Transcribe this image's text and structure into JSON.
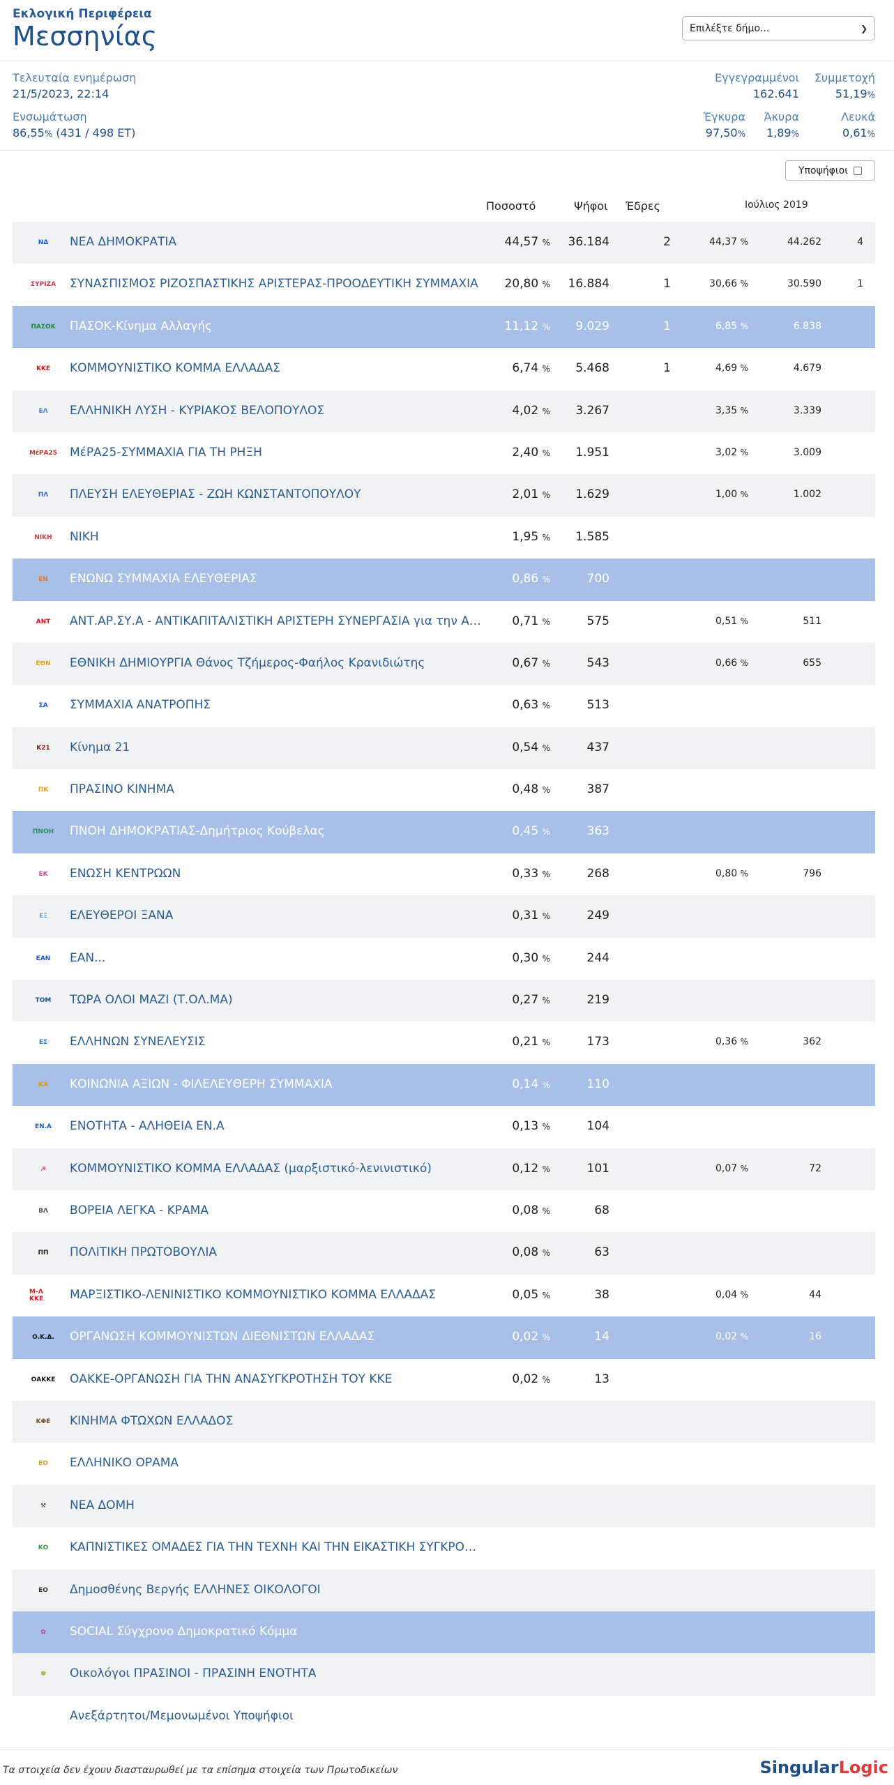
{
  "header": {
    "subtitle": "Εκλογική Περιφέρεια",
    "title": "Μεσσηνίας",
    "municipality_select": "Επιλέξτε δήμο..."
  },
  "stats": {
    "last_update_label": "Τελευταία ενημέρωση",
    "last_update_value": "21/5/2023, 22:14",
    "integration_label": "Ενσωμάτωση",
    "integration_pct": "86,55",
    "integration_detail": "(431 / 498 ΕΤ)",
    "registered_label": "Εγγεγραμμένοι",
    "registered_value": "162.641",
    "turnout_label": "Συμμετοχή",
    "turnout_value": "51,19",
    "valid_label": "Έγκυρα",
    "valid_value": "97,50",
    "invalid_label": "Άκυρα",
    "invalid_value": "1,89",
    "blank_label": "Λευκά",
    "blank_value": "0,61",
    "pct_sign": "%"
  },
  "candidates_toggle": "Υποψήφιοι",
  "table": {
    "col_pct": "Ποσοστό",
    "col_votes": "Ψήφοι",
    "col_seats": "Έδρες",
    "col_previous": "Ιούλιος 2019",
    "rows": [
      {
        "name": "ΝΕΑ ΔΗΜΟΚΡΑΤΙΑ",
        "pct": "44,57",
        "votes": "36.184",
        "seats": "2",
        "opct": "44,37",
        "ovotes": "44.262",
        "oseats": "4",
        "logo": "ΝΔ",
        "logo_color": "#1c58c7",
        "style": "alt"
      },
      {
        "name": "ΣΥΝΑΣΠΙΣΜΟΣ ΡΙΖΟΣΠΑΣΤΙΚΗΣ ΑΡΙΣΤΕΡΑΣ-ΠΡΟΟΔΕΥΤΙΚΗ ΣΥΜΜΑΧΙΑ",
        "pct": "20,80",
        "votes": "16.884",
        "seats": "1",
        "opct": "30,66",
        "ovotes": "30.590",
        "oseats": "1",
        "logo": "ΣΥΡΙΖΑ",
        "logo_color": "#c9384e",
        "style": ""
      },
      {
        "name": "ΠΑΣΟΚ-Κίνημα Αλλαγής",
        "pct": "11,12",
        "votes": "9.029",
        "seats": "1",
        "opct": "6,85",
        "ovotes": "6.838",
        "oseats": "",
        "logo": "ΠΑΣΟΚ",
        "logo_color": "#1a8a3a",
        "style": "hl"
      },
      {
        "name": "ΚΟΜΜΟΥΝΙΣΤΙΚΟ ΚΟΜΜΑ ΕΛΛΑΔΑΣ",
        "pct": "6,74",
        "votes": "5.468",
        "seats": "1",
        "opct": "4,69",
        "ovotes": "4.679",
        "oseats": "",
        "logo": "ΚΚΕ",
        "logo_color": "#d6161c",
        "style": ""
      },
      {
        "name": "ΕΛΛΗΝΙΚΗ ΛΥΣΗ - ΚΥΡΙΑΚΟΣ ΒΕΛΟΠΟΥΛΟΣ",
        "pct": "4,02",
        "votes": "3.267",
        "seats": "",
        "opct": "3,35",
        "ovotes": "3.339",
        "oseats": "",
        "logo": "ΕΛ",
        "logo_color": "#4a7fc1",
        "style": "alt"
      },
      {
        "name": "ΜέΡΑ25-ΣΥΜΜΑΧΙΑ ΓΙΑ ΤΗ ΡΗΞΗ",
        "pct": "2,40",
        "votes": "1.951",
        "seats": "",
        "opct": "3,02",
        "ovotes": "3.009",
        "oseats": "",
        "logo": "ΜέΡΑ25",
        "logo_color": "#c0392b",
        "style": ""
      },
      {
        "name": "ΠΛΕΥΣΗ ΕΛΕΥΘΕΡΙΑΣ - ΖΩΗ ΚΩΝΣΤΑΝΤΟΠΟΥΛΟΥ",
        "pct": "2,01",
        "votes": "1.629",
        "seats": "",
        "opct": "1,00",
        "ovotes": "1.002",
        "oseats": "",
        "logo": "ΠΛ",
        "logo_color": "#2a6fb0",
        "style": "alt"
      },
      {
        "name": "ΝΙΚΗ",
        "pct": "1,95",
        "votes": "1.585",
        "seats": "",
        "opct": "",
        "ovotes": "",
        "oseats": "",
        "logo": "ΝΙΚΗ",
        "logo_color": "#d04040",
        "style": ""
      },
      {
        "name": "ΕΝΩΝΩ ΣΥΜΜΑΧΙΑ ΕΛΕΥΘΕΡΙΑΣ",
        "pct": "0,86",
        "votes": "700",
        "seats": "",
        "opct": "",
        "ovotes": "",
        "oseats": "",
        "logo": "ΕΝ",
        "logo_color": "#e07a30",
        "style": "hl"
      },
      {
        "name": "ΑΝΤ.ΑΡ.ΣΥ.Α - ΑΝΤΙΚΑΠΙΤΑΛΙΣΤΙΚΗ ΑΡΙΣΤΕΡΗ ΣΥΝΕΡΓΑΣΙΑ για την ΑΝΑ...",
        "pct": "0,71",
        "votes": "575",
        "seats": "",
        "opct": "0,51",
        "ovotes": "511",
        "oseats": "",
        "logo": "ΑΝΤ",
        "logo_color": "#d6161c",
        "style": ""
      },
      {
        "name": "ΕΘΝΙΚΗ ΔΗΜΙΟΥΡΓΙΑ Θάνος Τζήμερος-Φαήλος Κρανιδιώτης",
        "pct": "0,67",
        "votes": "543",
        "seats": "",
        "opct": "0,66",
        "ovotes": "655",
        "oseats": "",
        "logo": "ΕΘΝ",
        "logo_color": "#e8a020",
        "style": "alt"
      },
      {
        "name": "ΣΥΜΜΑΧΙΑ ΑΝΑΤΡΟΠΗΣ",
        "pct": "0,63",
        "votes": "513",
        "seats": "",
        "opct": "",
        "ovotes": "",
        "oseats": "",
        "logo": "ΣΑ",
        "logo_color": "#1c58c7",
        "style": ""
      },
      {
        "name": "Κίνημα 21",
        "pct": "0,54",
        "votes": "437",
        "seats": "",
        "opct": "",
        "ovotes": "",
        "oseats": "",
        "logo": "Κ21",
        "logo_color": "#8a1c1c",
        "style": "alt"
      },
      {
        "name": "ΠΡΑΣΙΝΟ ΚΙΝΗΜΑ",
        "pct": "0,48",
        "votes": "387",
        "seats": "",
        "opct": "",
        "ovotes": "",
        "oseats": "",
        "logo": "ΠΚ",
        "logo_color": "#e8a020",
        "style": ""
      },
      {
        "name": "ΠΝΟΗ ΔΗΜΟΚΡΑΤΙΑΣ-Δημήτριος Κούβελας",
        "pct": "0,45",
        "votes": "363",
        "seats": "",
        "opct": "",
        "ovotes": "",
        "oseats": "",
        "logo": "ΠΝΟΗ",
        "logo_color": "#2a8a6a",
        "style": "hl"
      },
      {
        "name": "ΕΝΩΣΗ ΚΕΝΤΡΩΩΝ",
        "pct": "0,33",
        "votes": "268",
        "seats": "",
        "opct": "0,80",
        "ovotes": "796",
        "oseats": "",
        "logo": "ΕΚ",
        "logo_color": "#e04a90",
        "style": ""
      },
      {
        "name": "ΕΛΕΥΘΕΡΟΙ ΞΑΝΑ",
        "pct": "0,31",
        "votes": "249",
        "seats": "",
        "opct": "",
        "ovotes": "",
        "oseats": "",
        "logo": "ΕΞ",
        "logo_color": "#6aa0d0",
        "style": "alt"
      },
      {
        "name": "ΕΑΝ...",
        "pct": "0,30",
        "votes": "244",
        "seats": "",
        "opct": "",
        "ovotes": "",
        "oseats": "",
        "logo": "ΕΑΝ",
        "logo_color": "#1c58c7",
        "style": ""
      },
      {
        "name": "ΤΩΡΑ ΟΛΟΙ ΜΑΖΙ (Τ.ΟΛ.ΜΑ)",
        "pct": "0,27",
        "votes": "219",
        "seats": "",
        "opct": "",
        "ovotes": "",
        "oseats": "",
        "logo": "ΤΟΜ",
        "logo_color": "#1c4fa0",
        "style": "alt"
      },
      {
        "name": "ΕΛΛΗΝΩΝ ΣΥΝΕΛΕΥΣΙΣ",
        "pct": "0,21",
        "votes": "173",
        "seats": "",
        "opct": "0,36",
        "ovotes": "362",
        "oseats": "",
        "logo": "ΕΣ",
        "logo_color": "#2a78c8",
        "style": ""
      },
      {
        "name": "ΚΟΙΝΩΝΙΑ ΑΞΙΩΝ - ΦΙΛΕΛΕΥΘΕΡΗ ΣΥΜΜΑΧΙΑ",
        "pct": "0,14",
        "votes": "110",
        "seats": "",
        "opct": "",
        "ovotes": "",
        "oseats": "",
        "logo": "ΚΑ",
        "logo_color": "#d0a020",
        "style": "hl"
      },
      {
        "name": "ΕΝΟΤΗΤΑ - ΑΛΗΘΕΙΑ ΕΝ.Α",
        "pct": "0,13",
        "votes": "104",
        "seats": "",
        "opct": "",
        "ovotes": "",
        "oseats": "",
        "logo": "ΕΝ.Α",
        "logo_color": "#1c58c7",
        "style": ""
      },
      {
        "name": "ΚΟΜΜΟΥΝΙΣΤΙΚΟ ΚΟΜΜΑ ΕΛΛΑΔΑΣ (μαρξιστικό-λενινιστικό)",
        "pct": "0,12",
        "votes": "101",
        "seats": "",
        "opct": "0,07",
        "ovotes": "72",
        "oseats": "",
        "logo": "☭",
        "logo_color": "#d6161c",
        "style": "alt"
      },
      {
        "name": "ΒΟΡΕΙΑ ΛΕΓΚΑ - ΚΡΑΜΑ",
        "pct": "0,08",
        "votes": "68",
        "seats": "",
        "opct": "",
        "ovotes": "",
        "oseats": "",
        "logo": "ΒΛ",
        "logo_color": "#555555",
        "style": ""
      },
      {
        "name": "ΠΟΛΙΤΙΚΗ ΠΡΩΤΟΒΟΥΛΙΑ",
        "pct": "0,08",
        "votes": "63",
        "seats": "",
        "opct": "",
        "ovotes": "",
        "oseats": "",
        "logo": "ΠΠ",
        "logo_color": "#222222",
        "style": "alt"
      },
      {
        "name": "ΜΑΡΞΙΣΤΙΚΟ-ΛΕΝΙΝΙΣΤΙΚΟ ΚΟΜΜΟΥΝΙΣΤΙΚΟ ΚΟΜΜΑ ΕΛΛΑΔΑΣ",
        "pct": "0,05",
        "votes": "38",
        "seats": "",
        "opct": "0,04",
        "ovotes": "44",
        "oseats": "",
        "logo": "Μ-Λ ΚΚΕ",
        "logo_color": "#d6161c",
        "style": ""
      },
      {
        "name": "ΟΡΓΑΝΩΣΗ ΚΟΜΜΟΥΝΙΣΤΩΝ ΔΙΕΘΝΙΣΤΩΝ ΕΛΛΑΔΑΣ",
        "pct": "0,02",
        "votes": "14",
        "seats": "",
        "opct": "0,02",
        "ovotes": "16",
        "oseats": "",
        "logo": "Ο.Κ.Δ.",
        "logo_color": "#111111",
        "style": "hl"
      },
      {
        "name": "ΟΑΚΚΕ-ΟΡΓΑΝΩΣΗ ΓΙΑ ΤΗΝ ΑΝΑΣΥΓΚΡΟΤΗΣΗ ΤΟΥ ΚΚΕ",
        "pct": "0,02",
        "votes": "13",
        "seats": "",
        "opct": "",
        "ovotes": "",
        "oseats": "",
        "logo": "ΟΑΚΚΕ",
        "logo_color": "#111111",
        "style": ""
      },
      {
        "name": "ΚΙΝΗΜΑ ΦΤΩΧΩΝ ΕΛΛΑΔΟΣ",
        "pct": "",
        "votes": "",
        "seats": "",
        "opct": "",
        "ovotes": "",
        "oseats": "",
        "logo": "ΚΦΕ",
        "logo_color": "#7a4a20",
        "style": "alt"
      },
      {
        "name": "ΕΛΛΗΝΙΚΟ ΟΡΑΜΑ",
        "pct": "",
        "votes": "",
        "seats": "",
        "opct": "",
        "ovotes": "",
        "oseats": "",
        "logo": "ΕΟ",
        "logo_color": "#d0a020",
        "style": ""
      },
      {
        "name": "ΝΕΑ ΔΟΜΗ",
        "pct": "",
        "votes": "",
        "seats": "",
        "opct": "",
        "ovotes": "",
        "oseats": "",
        "logo": "⚒",
        "logo_color": "#444444",
        "style": "alt"
      },
      {
        "name": "ΚΑΠΝΙΣΤΙΚΕΣ ΟΜΑΔΕΣ ΓΙΑ ΤΗΝ ΤΕΧΝΗ ΚΑΙ ΤΗΝ ΕΙΚΑΣΤΙΚΗ ΣΥΓΚΡΟΤΗΣΗ",
        "pct": "",
        "votes": "",
        "seats": "",
        "opct": "",
        "ovotes": "",
        "oseats": "",
        "logo": "ΚΟ",
        "logo_color": "#3a9a4a",
        "style": ""
      },
      {
        "name": "Δημοσθένης Βεργής ΕΛΛΗΝΕΣ ΟΙΚΟΛΟΓΟΙ",
        "pct": "",
        "votes": "",
        "seats": "",
        "opct": "",
        "ovotes": "",
        "oseats": "",
        "logo": "ΕΟ",
        "logo_color": "#333333",
        "style": "alt"
      },
      {
        "name": "SOCIAL Σύγχρονο Δημοκρατικό Κόμμα",
        "pct": "",
        "votes": "",
        "seats": "",
        "opct": "",
        "ovotes": "",
        "oseats": "",
        "logo": "✿",
        "logo_color": "#c03a9a",
        "style": "hl"
      },
      {
        "name": "Οικολόγοι ΠΡΑΣΙΝΟΙ - ΠΡΑΣΙΝΗ ΕΝΟΤΗΤΑ",
        "pct": "",
        "votes": "",
        "seats": "",
        "opct": "",
        "ovotes": "",
        "oseats": "",
        "logo": "✽",
        "logo_color": "#8ab020",
        "style": "alt"
      },
      {
        "name": "Ανεξάρτητοι/Μεμονωμένοι Υποψήφιοι",
        "pct": "",
        "votes": "",
        "seats": "",
        "opct": "",
        "ovotes": "",
        "oseats": "",
        "logo": "",
        "logo_color": "#ffffff",
        "style": ""
      }
    ]
  },
  "footer": {
    "note": "Τα στοιχεία δεν έχουν διασταυρωθεί με τα επίσημα στοιχεία των Πρωτοδικείων",
    "brand_main": "Singular",
    "brand_accent": "Logic"
  }
}
